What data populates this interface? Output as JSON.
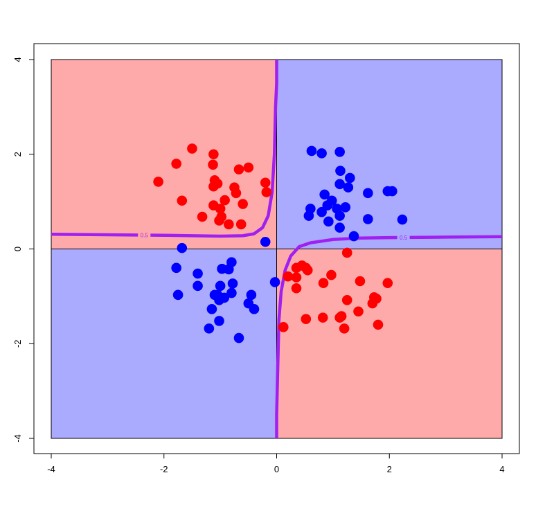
{
  "chart_data": {
    "type": "scatter",
    "title": "",
    "xlabel": "",
    "ylabel": "",
    "xlim": [
      -4,
      4
    ],
    "ylim": [
      -4,
      4
    ],
    "xticks": [
      -4,
      -2,
      0,
      2,
      4
    ],
    "yticks": [
      -4,
      -2,
      0,
      2,
      4
    ],
    "grid": false,
    "legend": "none",
    "regions": [
      {
        "x": [
          -4,
          0
        ],
        "y": [
          0,
          4
        ],
        "color": "#FFAAAA"
      },
      {
        "x": [
          0,
          4
        ],
        "y": [
          0,
          4
        ],
        "color": "#AAAAFF"
      },
      {
        "x": [
          -4,
          0
        ],
        "y": [
          -4,
          0
        ],
        "color": "#AAAAFF"
      },
      {
        "x": [
          0,
          4
        ],
        "y": [
          -4,
          0
        ],
        "color": "#FFAAAA"
      }
    ],
    "contour": {
      "level_label": "0.5",
      "color": "#A020F0",
      "branches": [
        {
          "x": [
            -4.0,
            -3.0,
            -2.0,
            -1.5,
            -1.0,
            -0.6,
            -0.4,
            -0.25,
            -0.15,
            -0.08,
            -0.04,
            -0.02,
            0.0,
            0.0
          ],
          "y": [
            0.31,
            0.3,
            0.29,
            0.28,
            0.27,
            0.28,
            0.32,
            0.45,
            0.7,
            1.2,
            2.0,
            3.0,
            3.5,
            4.0
          ]
        },
        {
          "x": [
            0.0,
            0.0,
            0.02,
            0.04,
            0.08,
            0.15,
            0.25,
            0.4,
            0.6,
            1.0,
            1.5,
            2.0,
            3.0,
            4.0
          ],
          "y": [
            -4.0,
            -3.5,
            -2.5,
            -1.5,
            -0.9,
            -0.45,
            -0.15,
            0.05,
            0.13,
            0.2,
            0.23,
            0.24,
            0.25,
            0.26
          ]
        }
      ]
    },
    "series": [
      {
        "color": "#FF0000",
        "points": [
          [
            -1.5,
            2.12
          ],
          [
            -1.12,
            2.0
          ],
          [
            -1.78,
            1.8
          ],
          [
            -1.13,
            1.78
          ],
          [
            -0.5,
            1.72
          ],
          [
            -0.67,
            1.68
          ],
          [
            -2.1,
            1.42
          ],
          [
            -1.1,
            1.45
          ],
          [
            -1.05,
            1.38
          ],
          [
            -0.2,
            1.4
          ],
          [
            -0.75,
            1.3
          ],
          [
            -1.12,
            1.32
          ],
          [
            -0.72,
            1.18
          ],
          [
            -0.18,
            1.2
          ],
          [
            -1.68,
            1.02
          ],
          [
            -0.92,
            1.03
          ],
          [
            -1.12,
            0.92
          ],
          [
            -0.6,
            0.95
          ],
          [
            -1.0,
            0.85
          ],
          [
            -1.32,
            0.68
          ],
          [
            -0.98,
            0.68
          ],
          [
            -1.02,
            0.6
          ],
          [
            -0.85,
            0.52
          ],
          [
            -0.63,
            0.52
          ],
          [
            1.25,
            -0.08
          ],
          [
            0.35,
            -0.4
          ],
          [
            0.45,
            -0.35
          ],
          [
            0.52,
            -0.4
          ],
          [
            0.55,
            -0.45
          ],
          [
            0.97,
            -0.55
          ],
          [
            0.2,
            -0.58
          ],
          [
            0.35,
            -0.6
          ],
          [
            1.48,
            -0.68
          ],
          [
            0.83,
            -0.72
          ],
          [
            1.97,
            -0.72
          ],
          [
            0.35,
            -0.83
          ],
          [
            1.73,
            -1.02
          ],
          [
            1.77,
            -1.05
          ],
          [
            1.25,
            -1.08
          ],
          [
            1.7,
            -1.15
          ],
          [
            1.45,
            -1.32
          ],
          [
            1.15,
            -1.42
          ],
          [
            1.12,
            -1.45
          ],
          [
            0.82,
            -1.45
          ],
          [
            0.52,
            -1.48
          ],
          [
            1.8,
            -1.6
          ],
          [
            0.12,
            -1.65
          ],
          [
            1.2,
            -1.68
          ]
        ]
      },
      {
        "color": "#0000FF",
        "points": [
          [
            0.62,
            2.07
          ],
          [
            0.8,
            2.02
          ],
          [
            1.12,
            2.05
          ],
          [
            1.13,
            1.65
          ],
          [
            1.3,
            1.5
          ],
          [
            1.12,
            1.37
          ],
          [
            1.27,
            1.3
          ],
          [
            0.85,
            1.15
          ],
          [
            1.62,
            1.18
          ],
          [
            1.97,
            1.22
          ],
          [
            2.05,
            1.22
          ],
          [
            0.98,
            1.02
          ],
          [
            0.9,
            0.92
          ],
          [
            0.6,
            0.85
          ],
          [
            1.22,
            0.88
          ],
          [
            1.07,
            0.85
          ],
          [
            0.8,
            0.78
          ],
          [
            1.12,
            0.7
          ],
          [
            0.57,
            0.7
          ],
          [
            1.62,
            0.63
          ],
          [
            2.23,
            0.62
          ],
          [
            0.92,
            0.58
          ],
          [
            1.12,
            0.45
          ],
          [
            1.37,
            0.27
          ],
          [
            -0.2,
            0.15
          ],
          [
            -1.68,
            0.02
          ],
          [
            -0.8,
            -0.28
          ],
          [
            -1.78,
            -0.4
          ],
          [
            -0.97,
            -0.42
          ],
          [
            -0.85,
            -0.43
          ],
          [
            -1.4,
            -0.52
          ],
          [
            -0.78,
            -0.73
          ],
          [
            -1.4,
            -0.78
          ],
          [
            -1.0,
            -0.78
          ],
          [
            -0.03,
            -0.7
          ],
          [
            -0.8,
            -0.93
          ],
          [
            -1.75,
            -0.97
          ],
          [
            -1.05,
            -0.97
          ],
          [
            -1.1,
            -0.97
          ],
          [
            -0.45,
            -0.97
          ],
          [
            -0.93,
            -1.03
          ],
          [
            -1.02,
            -1.08
          ],
          [
            -0.5,
            -1.15
          ],
          [
            -1.15,
            -1.27
          ],
          [
            -0.4,
            -1.27
          ],
          [
            -1.02,
            -1.52
          ],
          [
            -1.2,
            -1.68
          ],
          [
            -0.67,
            -1.88
          ]
        ]
      }
    ]
  }
}
